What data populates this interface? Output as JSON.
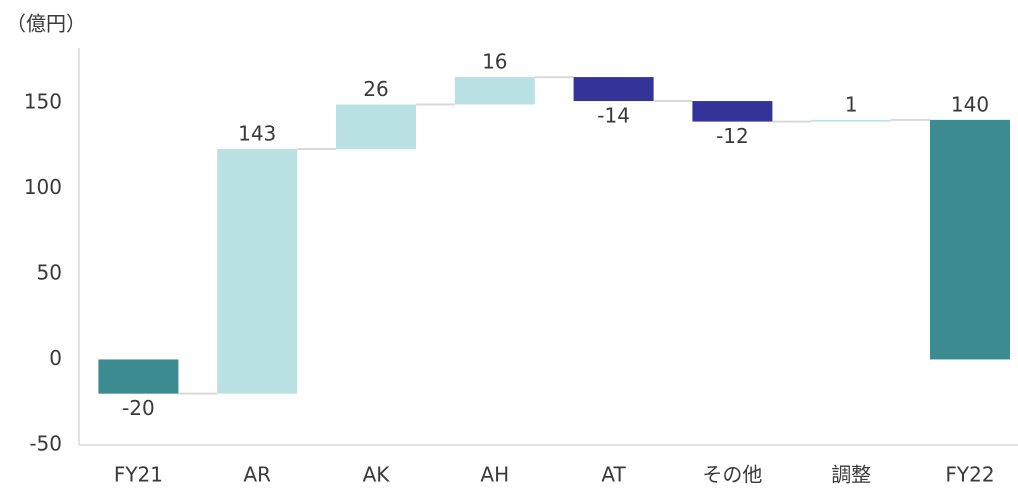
{
  "chart_data": {
    "type": "waterfall",
    "y_axis_label": "（億円）",
    "categories": [
      "FY21",
      "AR",
      "AK",
      "AH",
      "AT",
      "その他",
      "調整",
      "FY22"
    ],
    "values": [
      -20,
      143,
      26,
      16,
      -14,
      -12,
      1,
      140
    ],
    "measure": [
      "total",
      "delta",
      "delta",
      "delta",
      "delta",
      "delta",
      "delta",
      "total"
    ],
    "colors": [
      "#3b8b90",
      "#bae1e4",
      "#bae1e4",
      "#bae1e4",
      "#333399",
      "#333399",
      "#bae1e4",
      "#3b8b90"
    ],
    "ylim": [
      -50,
      182
    ],
    "yticks": [
      -50,
      0,
      50,
      100,
      150
    ],
    "grid": false
  }
}
